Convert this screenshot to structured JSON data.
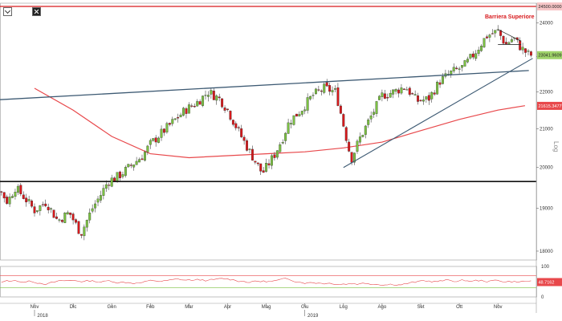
{
  "chart_data": {
    "type": "candlestick",
    "scale": "log",
    "axis_word": "Log",
    "annotation": "Barriera Superiore",
    "ylim": [
      17800,
      24600
    ],
    "y_ticks": [
      18000,
      19000,
      20000,
      21000,
      22000,
      23000,
      24000
    ],
    "y_tick_labels": [
      "18000",
      "19000",
      "20000",
      "21000",
      "22000",
      "23000",
      "24000"
    ],
    "months": [
      "Nov",
      "Dic",
      "Gen",
      "Feb",
      "Mar",
      "Apr",
      "Mag",
      "Giu",
      "Lug",
      "Ago",
      "Set",
      "Ott",
      "Nov"
    ],
    "years": [
      {
        "label": "2018",
        "month_index": 0
      },
      {
        "label": "2019",
        "month_index": 7
      }
    ],
    "upper_barrier": 24500,
    "upper_barrier_label": "24500.0000",
    "support_level": 19650,
    "last_price": 23041.9609,
    "last_price_label": "23041.9609",
    "ma_last": 21615.3477,
    "ma_last_label": "21615.3477",
    "moving_average": {
      "months": [
        0,
        1,
        2,
        3,
        4,
        5,
        6,
        7,
        8,
        9,
        10,
        11,
        12,
        12.7
      ],
      "values": [
        22100,
        21500,
        20800,
        20350,
        20250,
        20300,
        20350,
        20400,
        20500,
        20650,
        20950,
        21250,
        21500,
        21620
      ]
    },
    "trendline_long": {
      "m1": -1.5,
      "v1": 21750,
      "m2": 12.8,
      "v2": 22600
    },
    "trendline_up": {
      "m1": 8.0,
      "v1": 20000,
      "m2": 12.9,
      "v2": 22950
    },
    "top_trend": {
      "m1": 12.0,
      "v1": 23800,
      "m2": 12.6,
      "v2": 23450
    },
    "close_path": {
      "months": [
        -1.5,
        -1.2,
        -1.0,
        -0.7,
        -0.5,
        -0.3,
        0.0,
        0.3,
        0.6,
        0.9,
        1.2,
        1.5,
        1.7,
        1.9,
        2.2,
        2.5,
        2.8,
        3.0,
        3.3,
        3.6,
        3.9,
        4.2,
        4.5,
        4.8,
        5.0,
        5.3,
        5.6,
        5.9,
        6.2,
        6.4,
        6.6,
        6.9,
        7.2,
        7.5,
        7.8,
        8.0,
        8.2,
        8.4,
        8.7,
        9.0,
        9.3,
        9.6,
        9.9,
        10.2,
        10.5,
        10.8,
        11.1,
        11.4,
        11.7,
        12.0,
        12.2,
        12.4,
        12.6,
        12.8,
        12.9
      ],
      "values": [
        19100,
        19400,
        19600,
        19150,
        19500,
        19300,
        18950,
        19150,
        18700,
        18900,
        18400,
        19000,
        19300,
        19650,
        19800,
        20050,
        20300,
        20600,
        20900,
        21200,
        21500,
        21700,
        22000,
        21800,
        21500,
        20900,
        20350,
        19850,
        20300,
        20700,
        21200,
        21500,
        21900,
        22100,
        22000,
        21100,
        20200,
        20700,
        21300,
        21900,
        22000,
        22150,
        21750,
        21800,
        22300,
        22550,
        22700,
        23100,
        23600,
        23750,
        23350,
        23550,
        23250,
        23050,
        23040
      ]
    },
    "candle_seed": 7,
    "candles_per_month": 14,
    "colors": {
      "up": "#7bc142",
      "down": "#d7191c",
      "ma": "#e8484b",
      "trend": "#3d5a73",
      "support": "#111111",
      "barrier": "#d7191c",
      "rsi": "#e8484b"
    },
    "rsi": {
      "ylim": [
        0,
        100
      ],
      "ticks": [
        0,
        100
      ],
      "tick_labels": [
        "0",
        "100"
      ],
      "upper": 70,
      "lower": 30,
      "last": 48.7162,
      "last_label": "48.7162"
    }
  }
}
